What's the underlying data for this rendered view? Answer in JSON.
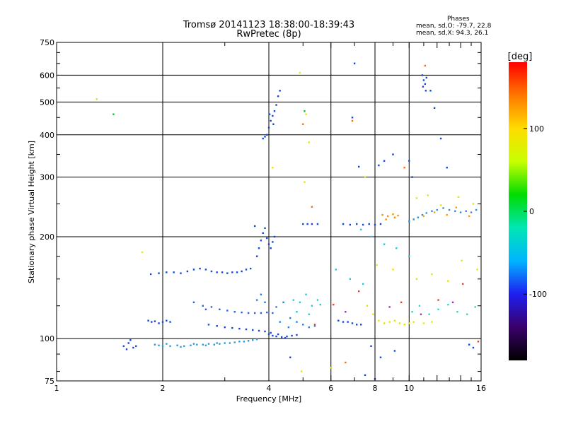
{
  "header": {
    "title_line1": "Tromsø 20141123 18:38:00-18:39:43",
    "title_line2": "RwPretec (8p)"
  },
  "phase_box": {
    "heading": "Phases",
    "line_o": "mean, sd,O: -79.7, 22.8",
    "line_x": "mean, sd,X:  94.3, 26.1"
  },
  "chart_data": {
    "type": "scatter",
    "xlabel": "Frequency [MHz]",
    "ylabel": "Stationary phase Virtual Height [km]",
    "x_scale": "log",
    "y_scale": "log",
    "xlim": [
      1,
      16
    ],
    "ylim": [
      75,
      750
    ],
    "x_ticks": [
      1,
      2,
      4,
      6,
      8,
      10,
      16
    ],
    "y_ticks": [
      75,
      100,
      200,
      300,
      400,
      500,
      600,
      750
    ],
    "grid": true,
    "colorbar": {
      "label": "[deg]",
      "range": [
        -180,
        180
      ],
      "ticks": [
        100,
        0,
        -100
      ],
      "colors": [
        "#000000",
        "#3a006a",
        "#1e1ef0",
        "#00b4ff",
        "#00e6b4",
        "#00dc00",
        "#c8ff00",
        "#ffdc00",
        "#ff7800",
        "#ff0000"
      ]
    },
    "clusters": [
      {
        "color": "#2a9be0",
        "points": [
          [
            1.9,
            96
          ],
          [
            1.95,
            95.5
          ],
          [
            2.0,
            95
          ],
          [
            2.1,
            95
          ],
          [
            2.2,
            95.5
          ],
          [
            2.3,
            95
          ],
          [
            2.4,
            95.5
          ],
          [
            2.5,
            96
          ],
          [
            2.6,
            96
          ],
          [
            2.7,
            96.5
          ],
          [
            2.8,
            96
          ],
          [
            2.9,
            96.5
          ],
          [
            3.0,
            97
          ],
          [
            3.1,
            97
          ],
          [
            3.2,
            97.5
          ],
          [
            3.3,
            98
          ],
          [
            3.4,
            98
          ],
          [
            3.5,
            98.5
          ],
          [
            3.6,
            99
          ],
          [
            3.7,
            99.5
          ],
          [
            2.05,
            96.5
          ],
          [
            2.25,
            94.5
          ],
          [
            2.45,
            96.5
          ],
          [
            2.65,
            95.5
          ],
          [
            2.85,
            97
          ]
        ]
      },
      {
        "color": "#1446d8",
        "points": [
          [
            1.55,
            95
          ],
          [
            1.58,
            93
          ],
          [
            1.6,
            97
          ],
          [
            1.62,
            99
          ],
          [
            1.65,
            94
          ],
          [
            1.68,
            95
          ]
        ]
      },
      {
        "color": "#1446d8",
        "points": [
          [
            1.82,
            113
          ],
          [
            1.86,
            112
          ],
          [
            1.9,
            112.5
          ],
          [
            1.95,
            111
          ],
          [
            2.0,
            112
          ],
          [
            2.05,
            113
          ],
          [
            2.1,
            112
          ]
        ]
      },
      {
        "color": "#1446d8",
        "points": [
          [
            2.7,
            110
          ],
          [
            2.85,
            109
          ],
          [
            3.0,
            108
          ],
          [
            3.15,
            107.5
          ],
          [
            3.3,
            107
          ],
          [
            3.45,
            106.5
          ],
          [
            3.6,
            106
          ],
          [
            3.75,
            105.5
          ],
          [
            3.9,
            105
          ],
          [
            4.0,
            103
          ],
          [
            4.1,
            102
          ],
          [
            4.2,
            101.5
          ],
          [
            4.35,
            101
          ],
          [
            4.5,
            101.5
          ],
          [
            4.65,
            102
          ],
          [
            4.8,
            102.5
          ],
          [
            4.05,
            104
          ],
          [
            4.25,
            103
          ],
          [
            4.45,
            100.5
          ]
        ]
      },
      {
        "color": "#2a60e0",
        "points": [
          [
            2.6,
            125
          ],
          [
            2.75,
            124
          ],
          [
            2.9,
            122
          ],
          [
            3.05,
            121
          ],
          [
            3.2,
            120
          ],
          [
            3.35,
            119.5
          ],
          [
            3.5,
            119
          ],
          [
            3.65,
            119
          ],
          [
            3.8,
            119
          ],
          [
            3.95,
            119.5
          ],
          [
            4.1,
            119
          ],
          [
            2.45,
            128
          ],
          [
            2.65,
            122
          ]
        ]
      },
      {
        "color": "#1446d8",
        "points": [
          [
            1.85,
            155
          ],
          [
            1.95,
            156
          ],
          [
            2.05,
            157
          ],
          [
            2.15,
            157
          ],
          [
            2.25,
            156
          ],
          [
            2.35,
            158
          ],
          [
            2.45,
            160
          ],
          [
            2.55,
            161
          ],
          [
            2.65,
            160
          ],
          [
            2.75,
            158
          ],
          [
            2.85,
            157
          ],
          [
            2.95,
            157
          ],
          [
            3.05,
            156
          ],
          [
            3.15,
            157
          ],
          [
            3.25,
            157
          ],
          [
            3.35,
            158
          ],
          [
            3.45,
            160
          ],
          [
            3.55,
            161
          ]
        ]
      },
      {
        "color": "#1446d8",
        "points": [
          [
            3.7,
            175
          ],
          [
            3.75,
            185
          ],
          [
            3.8,
            195
          ],
          [
            3.85,
            205
          ],
          [
            3.9,
            212
          ],
          [
            3.95,
            198
          ],
          [
            4.0,
            190
          ],
          [
            4.05,
            185
          ],
          [
            4.1,
            193
          ],
          [
            4.15,
            200
          ],
          [
            3.65,
            215
          ]
        ]
      },
      {
        "color": "#1446d8",
        "points": [
          [
            3.95,
            400
          ],
          [
            4.0,
            420
          ],
          [
            4.05,
            440
          ],
          [
            4.1,
            455
          ],
          [
            4.15,
            470
          ],
          [
            4.2,
            490
          ],
          [
            4.25,
            520
          ],
          [
            4.3,
            540
          ],
          [
            3.85,
            390
          ],
          [
            3.9,
            395
          ],
          [
            4.02,
            460
          ],
          [
            4.12,
            430
          ]
        ]
      },
      {
        "color": "#1a7de8",
        "points": [
          [
            3.7,
            130
          ],
          [
            3.8,
            135
          ],
          [
            3.9,
            128
          ],
          [
            4.2,
            124
          ],
          [
            4.4,
            128
          ],
          [
            4.6,
            115
          ],
          [
            4.8,
            112
          ],
          [
            5.0,
            110
          ],
          [
            5.2,
            108
          ],
          [
            5.4,
            109
          ],
          [
            4.3,
            112
          ],
          [
            4.55,
            108
          ]
        ]
      },
      {
        "color": "#20c8e0",
        "points": [
          [
            4.7,
            130
          ],
          [
            4.9,
            128
          ],
          [
            5.1,
            135
          ],
          [
            5.3,
            125
          ],
          [
            5.5,
            130
          ],
          [
            4.8,
            120
          ],
          [
            5.2,
            118
          ],
          [
            5.6,
            126
          ]
        ]
      },
      {
        "color": "#1446d8",
        "points": [
          [
            5.0,
            218
          ],
          [
            5.15,
            218
          ],
          [
            5.3,
            218
          ],
          [
            5.5,
            218
          ],
          [
            6.5,
            218
          ],
          [
            6.8,
            217
          ],
          [
            7.1,
            218
          ],
          [
            7.4,
            217
          ],
          [
            7.7,
            218
          ],
          [
            8.0,
            217
          ],
          [
            8.3,
            218
          ]
        ]
      },
      {
        "color": "#1446d8",
        "points": [
          [
            6.3,
            113
          ],
          [
            6.5,
            112
          ],
          [
            6.7,
            112
          ],
          [
            6.9,
            111
          ],
          [
            7.1,
            110
          ],
          [
            7.3,
            110
          ]
        ]
      },
      {
        "color": "#e6e600",
        "points": [
          [
            7.6,
            125
          ],
          [
            7.9,
            118
          ],
          [
            8.2,
            113
          ],
          [
            8.5,
            111
          ],
          [
            8.8,
            112
          ],
          [
            9.1,
            113
          ],
          [
            9.4,
            111
          ],
          [
            9.7,
            110
          ],
          [
            10.0,
            111
          ],
          [
            10.3,
            112
          ],
          [
            11.0,
            111
          ],
          [
            11.6,
            112
          ]
        ]
      },
      {
        "color": "#ff8c00",
        "points": [
          [
            8.4,
            232
          ],
          [
            8.7,
            230
          ],
          [
            9.0,
            233
          ],
          [
            9.3,
            231
          ],
          [
            8.6,
            225
          ],
          [
            9.1,
            228
          ]
        ]
      },
      {
        "color": "#2a90e0",
        "points": [
          [
            10.0,
            222
          ],
          [
            10.3,
            225
          ],
          [
            10.6,
            228
          ],
          [
            10.9,
            232
          ],
          [
            11.2,
            235
          ],
          [
            11.6,
            238
          ],
          [
            12.0,
            240
          ],
          [
            12.5,
            243
          ],
          [
            13.0,
            240
          ],
          [
            13.5,
            238
          ],
          [
            14.0,
            236
          ],
          [
            14.5,
            238
          ],
          [
            15.0,
            236
          ],
          [
            15.5,
            240
          ]
        ]
      },
      {
        "color": "#ff9a00",
        "points": [
          [
            11.0,
            230
          ],
          [
            11.8,
            236
          ],
          [
            12.8,
            232
          ],
          [
            13.6,
            244
          ],
          [
            14.8,
            230
          ]
        ]
      },
      {
        "color": "#e6e600",
        "points": [
          [
            10.5,
            260
          ],
          [
            11.3,
            265
          ],
          [
            12.3,
            248
          ],
          [
            13.8,
            262
          ],
          [
            15.2,
            250
          ]
        ]
      },
      {
        "color": "#30d8c8",
        "points": [
          [
            10.2,
            120
          ],
          [
            10.7,
            125
          ],
          [
            11.4,
            118
          ],
          [
            12.1,
            122
          ],
          [
            12.9,
            126
          ],
          [
            13.7,
            120
          ],
          [
            14.6,
            118
          ],
          [
            15.4,
            124
          ]
        ]
      },
      {
        "color": "#1446d8",
        "points": [
          [
            10.9,
            600
          ],
          [
            11.0,
            580
          ],
          [
            11.1,
            565
          ],
          [
            11.2,
            590
          ],
          [
            10.95,
            555
          ],
          [
            11.15,
            540
          ]
        ]
      },
      {
        "color": "#e6e600",
        "points": [
          [
            1.3,
            510
          ],
          [
            4.1,
            320
          ],
          [
            5.1,
            460
          ],
          [
            5.2,
            380
          ],
          [
            5.05,
            290
          ],
          [
            4.9,
            610
          ],
          [
            1.75,
            180
          ],
          [
            4.95,
            80
          ],
          [
            6.0,
            82
          ],
          [
            7.5,
            300
          ]
        ]
      },
      {
        "color": "#00c832",
        "points": [
          [
            1.45,
            460
          ],
          [
            5.05,
            470
          ]
        ]
      },
      {
        "color": "#ff6a00",
        "points": [
          [
            5.0,
            430
          ],
          [
            6.9,
            440
          ],
          [
            5.3,
            245
          ],
          [
            6.6,
            85
          ],
          [
            11.1,
            640
          ],
          [
            9.7,
            320
          ]
        ]
      },
      {
        "color": "#1446d8",
        "points": [
          [
            7.0,
            650
          ],
          [
            6.9,
            450
          ],
          [
            7.2,
            322
          ],
          [
            8.2,
            325
          ],
          [
            8.5,
            335
          ],
          [
            9.0,
            350
          ],
          [
            10.0,
            335
          ],
          [
            10.2,
            300
          ],
          [
            11.8,
            480
          ],
          [
            12.3,
            390
          ],
          [
            11.5,
            540
          ],
          [
            12.8,
            320
          ]
        ]
      },
      {
        "color": "#20c8e0",
        "points": [
          [
            7.3,
            210
          ],
          [
            7.8,
            200
          ],
          [
            8.5,
            190
          ],
          [
            9.2,
            185
          ],
          [
            10.0,
            175
          ],
          [
            6.2,
            160
          ],
          [
            6.8,
            150
          ],
          [
            7.4,
            145
          ]
        ]
      },
      {
        "color": "#e04040",
        "points": [
          [
            5.4,
            110
          ],
          [
            6.1,
            126
          ],
          [
            7.2,
            138
          ],
          [
            9.5,
            128
          ],
          [
            12.1,
            130
          ],
          [
            14.2,
            145
          ],
          [
            15.7,
            98
          ]
        ]
      },
      {
        "color": "#1446d8",
        "points": [
          [
            7.8,
            95
          ],
          [
            8.3,
            88
          ],
          [
            9.1,
            92
          ],
          [
            14.8,
            96
          ],
          [
            15.2,
            94
          ],
          [
            7.5,
            78
          ],
          [
            8.0,
            76
          ],
          [
            4.6,
            88
          ]
        ]
      },
      {
        "color": "#e6e600",
        "points": [
          [
            8.1,
            165
          ],
          [
            9.0,
            160
          ],
          [
            10.5,
            150
          ],
          [
            11.6,
            155
          ],
          [
            12.9,
            148
          ],
          [
            14.1,
            170
          ],
          [
            15.6,
            160
          ]
        ]
      },
      {
        "color": "#9a30d0",
        "points": [
          [
            6.6,
            120
          ],
          [
            8.8,
            124
          ],
          [
            10.8,
            118
          ],
          [
            13.3,
            128
          ]
        ]
      }
    ]
  }
}
